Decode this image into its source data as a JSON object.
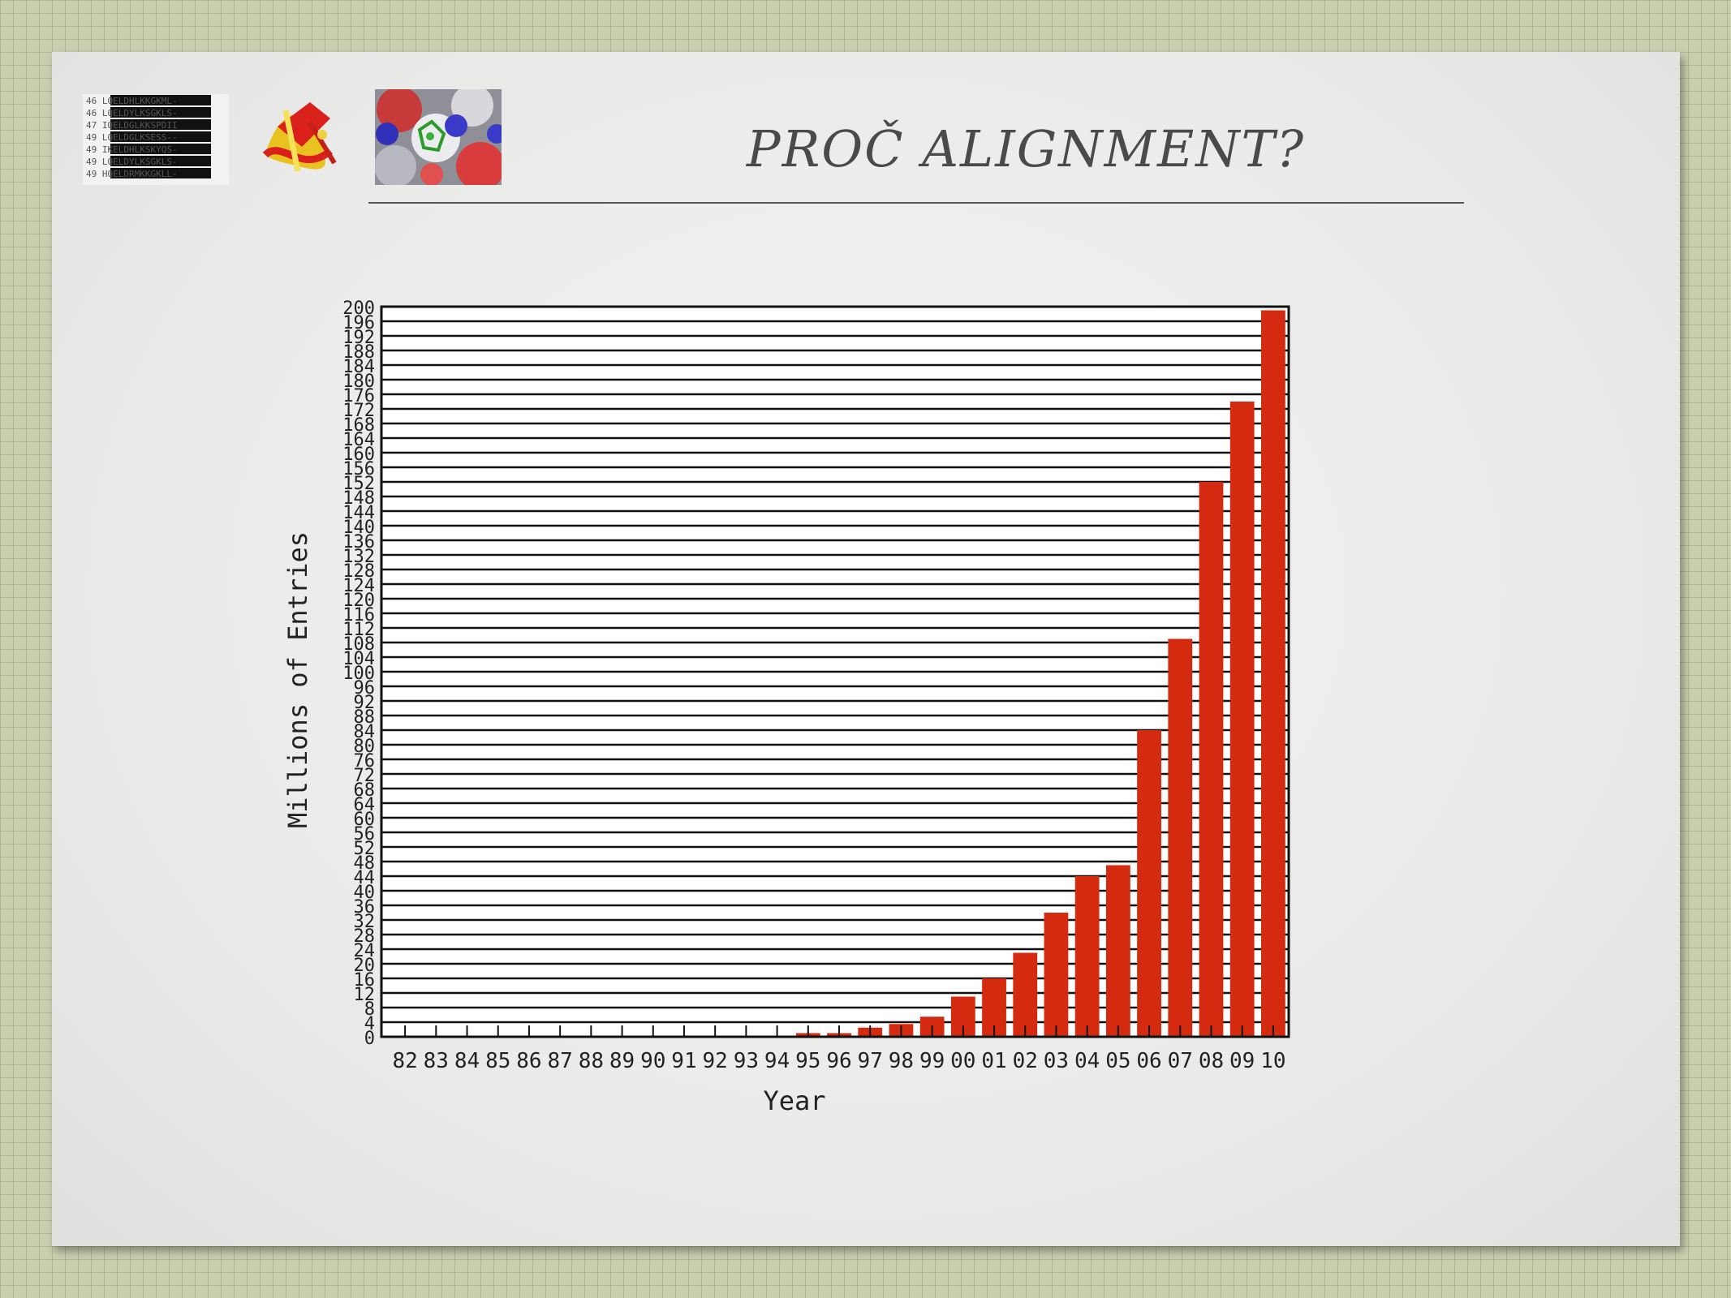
{
  "slide": {
    "title": "PROČ ALIGNMENT?",
    "thumbnails": [
      {
        "name": "sequence-alignment-icon"
      },
      {
        "name": "protein-ribbon-icon"
      },
      {
        "name": "protein-surface-icon"
      }
    ],
    "alignment_lines": [
      "46 LQELDHLKKGKML-",
      "46 LQELDYLKSGKLS-",
      "47 IQELDGLKKSPDII",
      "49 LQELDGLKSESS--",
      "49 IKELDHLKSKYQS-",
      "49 LQELDYLKSGKLS-",
      "49 HQELDRMKKGKLL-"
    ]
  },
  "colors": {
    "bar": "#d42a10",
    "grid": "#111111"
  },
  "chart_data": {
    "type": "bar",
    "title": "",
    "xlabel": "Year",
    "ylabel": "Millions of Entries",
    "ylim": [
      0,
      200
    ],
    "yticks": [
      0,
      4,
      8,
      12,
      16,
      20,
      24,
      28,
      32,
      36,
      40,
      44,
      48,
      52,
      56,
      60,
      64,
      68,
      72,
      76,
      80,
      84,
      88,
      92,
      96,
      100,
      104,
      108,
      112,
      116,
      120,
      124,
      128,
      132,
      136,
      140,
      144,
      148,
      152,
      156,
      160,
      164,
      168,
      172,
      176,
      180,
      184,
      188,
      192,
      196,
      200
    ],
    "categories": [
      "82",
      "83",
      "84",
      "85",
      "86",
      "87",
      "88",
      "89",
      "90",
      "91",
      "92",
      "93",
      "94",
      "95",
      "96",
      "97",
      "98",
      "99",
      "00",
      "01",
      "02",
      "03",
      "04",
      "05",
      "06",
      "07",
      "08",
      "09",
      "10"
    ],
    "values": [
      0,
      0,
      0,
      0,
      0,
      0,
      0,
      0,
      0,
      0,
      0,
      0,
      0,
      1,
      1,
      2.5,
      3.5,
      5.5,
      11,
      16,
      23,
      34,
      44,
      47,
      84,
      109,
      152,
      174,
      199
    ],
    "grid": true
  }
}
